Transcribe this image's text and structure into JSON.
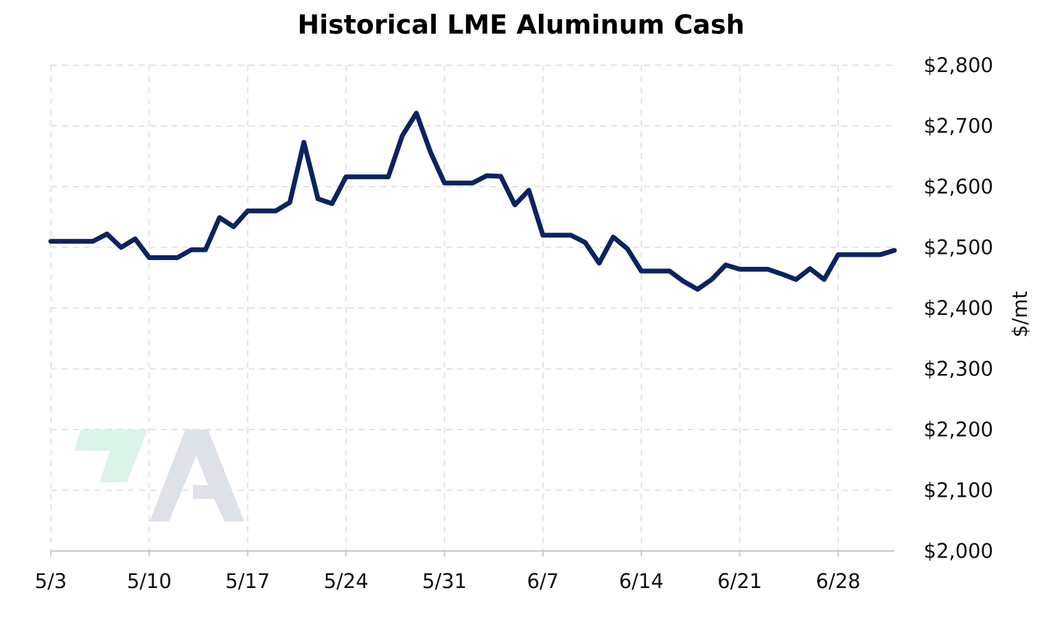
{
  "chart_data": {
    "type": "line",
    "title": "Historical LME Aluminum Cash",
    "ylabel": "$/mt",
    "xlabel": "",
    "ylim": [
      2000,
      2800
    ],
    "y_ticks": [
      2000,
      2100,
      2200,
      2300,
      2400,
      2500,
      2600,
      2700,
      2800
    ],
    "y_tick_labels": [
      "$2,000",
      "$2,100",
      "$2,200",
      "$2,300",
      "$2,400",
      "$2,500",
      "$2,600",
      "$2,700",
      "$2,800"
    ],
    "x_ticks": [
      "5/3",
      "5/10",
      "5/17",
      "5/24",
      "5/31",
      "6/7",
      "6/14",
      "6/21",
      "6/28"
    ],
    "x_range": [
      "5/3",
      "7/2"
    ],
    "grid": true,
    "legend": "none",
    "line_color": "#0b2360",
    "series": [
      {
        "x": [
          "5/3",
          "5/4",
          "5/5",
          "5/6",
          "5/7",
          "5/8",
          "5/9",
          "5/10",
          "5/11",
          "5/12",
          "5/13",
          "5/14",
          "5/15",
          "5/16",
          "5/17",
          "5/18",
          "5/19",
          "5/20",
          "5/21",
          "5/22",
          "5/23",
          "5/24",
          "5/25",
          "5/26",
          "5/27",
          "5/28",
          "5/29",
          "5/30",
          "5/31",
          "6/1",
          "6/2",
          "6/3",
          "6/4",
          "6/5",
          "6/6",
          "6/7",
          "6/8",
          "6/9",
          "6/10",
          "6/11",
          "6/12",
          "6/13",
          "6/14",
          "6/15",
          "6/16",
          "6/17",
          "6/18",
          "6/19",
          "6/20",
          "6/21",
          "6/22",
          "6/23",
          "6/24",
          "6/25",
          "6/26",
          "6/27",
          "6/28",
          "6/29",
          "6/30",
          "7/1",
          "7/2"
        ],
        "values": [
          2510,
          2510,
          2510,
          2510,
          2522,
          2500,
          2514,
          2483,
          2483,
          2483,
          2496,
          2496,
          2549,
          2534,
          2560,
          2560,
          2560,
          2574,
          2673,
          2580,
          2572,
          2616,
          2616,
          2616,
          2616,
          2684,
          2721,
          2657,
          2606,
          2606,
          2606,
          2618,
          2617,
          2570,
          2594,
          2520,
          2520,
          2520,
          2508,
          2474,
          2517,
          2498,
          2461,
          2461,
          2461,
          2444,
          2431,
          2447,
          2471,
          2464,
          2464,
          2464,
          2456,
          2447,
          2465,
          2447,
          2488,
          2488,
          2488,
          2488,
          2495
        ]
      }
    ]
  }
}
